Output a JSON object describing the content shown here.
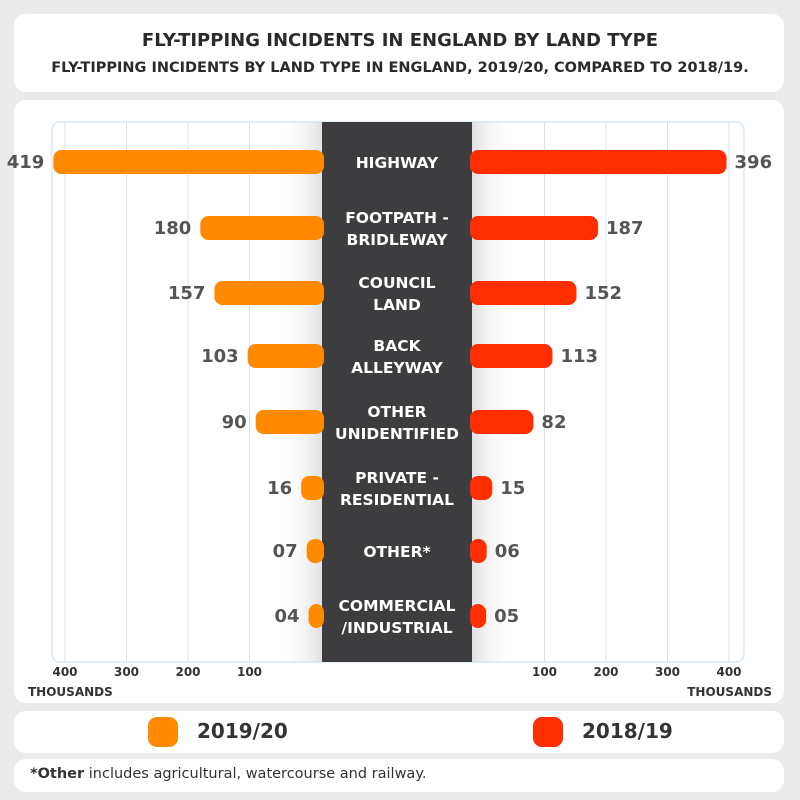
{
  "title": "FLY-TIPPING INCIDENTS IN ENGLAND BY LAND TYPE",
  "subtitle": "FLY-TIPPING INCIDENTS BY LAND TYPE IN ENGLAND, 2019/20, COMPARED TO 2018/19.",
  "colors": {
    "left": "#ff8a00",
    "right": "#ff2e00",
    "center": "#3d3d3f",
    "grid": "#cfe3f2"
  },
  "legend": [
    {
      "label": "2019/20",
      "color": "#ff8a00"
    },
    {
      "label": "2018/19",
      "color": "#ff2e00"
    }
  ],
  "note": {
    "bold": "*Other",
    "rest": " includes agricultural, watercourse and railway."
  },
  "chart_data": {
    "type": "bar",
    "orientation": "butterfly",
    "categories": [
      [
        "HIGHWAY"
      ],
      [
        "FOOTPATH -",
        "BRIDLEWAY"
      ],
      [
        "COUNCIL",
        "LAND"
      ],
      [
        "BACK",
        "ALLEYWAY"
      ],
      [
        "OTHER",
        "UNIDENTIFIED"
      ],
      [
        "PRIVATE -",
        "RESIDENTIAL"
      ],
      [
        "OTHER*"
      ],
      [
        "COMMERCIAL",
        "/INDUSTRIAL"
      ]
    ],
    "series": [
      {
        "name": "2019/20",
        "side": "left",
        "values": [
          419,
          180,
          157,
          103,
          90,
          16,
          7,
          4
        ],
        "labels": [
          "419",
          "180",
          "157",
          "103",
          "90",
          "16",
          "07",
          "04"
        ]
      },
      {
        "name": "2018/19",
        "side": "right",
        "values": [
          396,
          187,
          152,
          113,
          82,
          15,
          6,
          5
        ],
        "labels": [
          "396",
          "187",
          "152",
          "113",
          "82",
          "15",
          "06",
          "05"
        ]
      }
    ],
    "axis_ticks": [
      "400",
      "300",
      "200",
      "100"
    ],
    "axis_unit": "THOUSANDS",
    "xlim": [
      0,
      400
    ]
  }
}
